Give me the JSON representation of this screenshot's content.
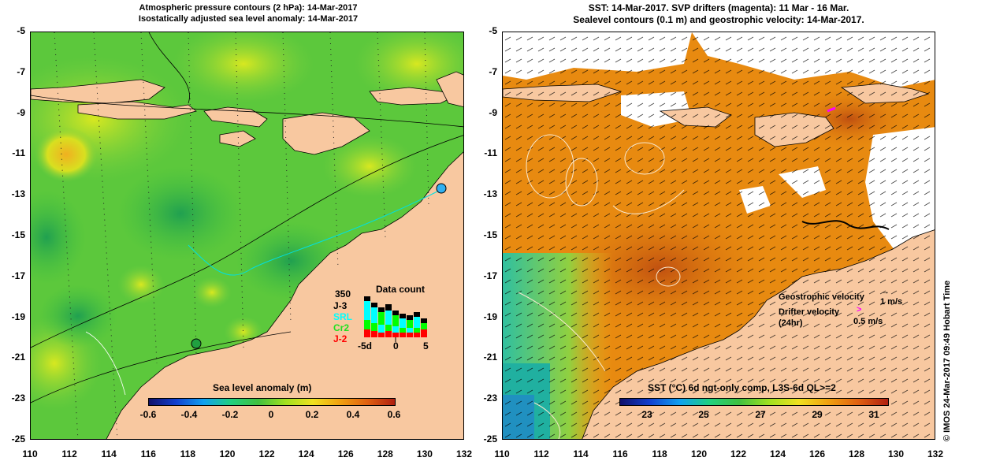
{
  "left": {
    "title_line1": "Atmospheric pressure contours (2 hPa): 14-Mar-2017",
    "title_line2": "Isostatically adjusted sea level anomaly: 14-Mar-2017",
    "colorbar_title": "Sea level anomaly (m)",
    "colorbar_ticks": [
      "-0.6",
      "-0.4",
      "-0.2",
      "0",
      "0.2",
      "0.4",
      "0.6"
    ],
    "data_count": {
      "title": "Data count",
      "max_label": "350",
      "satellites": [
        {
          "name": "J-3",
          "color": "#000000"
        },
        {
          "name": "SRL",
          "color": "#00ffff"
        },
        {
          "name": "Cr2",
          "color": "#00ff00"
        },
        {
          "name": "J-2",
          "color": "#ff0000"
        }
      ],
      "x_labels": [
        "-5d",
        "0",
        "5"
      ]
    }
  },
  "right": {
    "title_line1": "SST: 14-Mar-2017. SVP drifters (magenta): 11 Mar - 16 Mar.",
    "title_line2": "Sealevel contours (0.1 m) and geostrophic velocity: 14-Mar-2017.",
    "colorbar_title": "SST (°C) 6d ngt-only comp, L3S-6d QL>=2",
    "colorbar_ticks": [
      "23",
      "25",
      "27",
      "29",
      "31"
    ],
    "legend": {
      "geo_label": "Geostrophic velocity",
      "geo_value": "1 m/s",
      "drifter_label": "Drifter velocity",
      "drifter_sub": "(24hr)",
      "drifter_value": "0.5 m/s"
    }
  },
  "axes": {
    "y_ticks": [
      "-5",
      "-7",
      "-9",
      "-11",
      "-13",
      "-15",
      "-17",
      "-19",
      "-21",
      "-23",
      "-25"
    ],
    "x_ticks": [
      "110",
      "112",
      "114",
      "116",
      "118",
      "120",
      "122",
      "124",
      "126",
      "128",
      "130",
      "132"
    ]
  },
  "side_text": "© IMOS 24-Mar-2017 09:49 Hobart Time",
  "colors": {
    "land": "#f8c8a0",
    "sla_mid": "#40c040",
    "sst_mid": "#e88a10"
  }
}
